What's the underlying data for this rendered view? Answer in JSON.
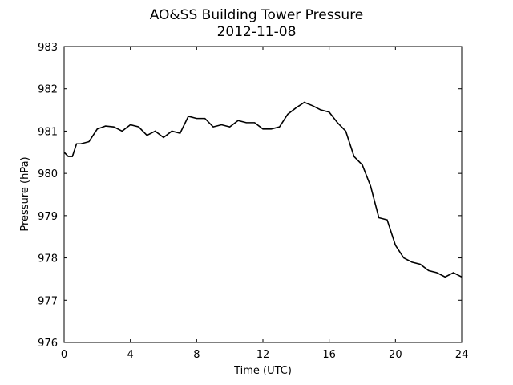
{
  "chart_data": {
    "type": "line",
    "title": "AO&SS Building Tower Pressure",
    "subtitle": "2012-11-08",
    "x_label": "Time (UTC)",
    "y_label": "Pressure (hPa)",
    "x": [
      0,
      0.25,
      0.5,
      0.75,
      1,
      1.5,
      2,
      2.5,
      3,
      3.5,
      4,
      4.5,
      5,
      5.5,
      6,
      6.5,
      7,
      7.5,
      8,
      8.5,
      9,
      9.5,
      10,
      10.5,
      11,
      11.5,
      12,
      12.5,
      13,
      13.5,
      14,
      14.5,
      15,
      15.5,
      16,
      16.5,
      17,
      17.5,
      18,
      18.5,
      19,
      19.5,
      20,
      20.5,
      21,
      21.5,
      22,
      22.5,
      23,
      23.5,
      24
    ],
    "series": [
      {
        "name": "Pressure",
        "color": "#000000",
        "values": [
          980.5,
          980.4,
          980.4,
          980.7,
          980.7,
          980.75,
          981.05,
          981.12,
          981.1,
          981.0,
          981.15,
          981.1,
          980.9,
          981.0,
          980.85,
          981.0,
          980.95,
          981.35,
          981.3,
          981.3,
          981.1,
          981.15,
          981.1,
          981.25,
          981.2,
          981.2,
          981.05,
          981.05,
          981.1,
          981.4,
          981.55,
          981.68,
          981.6,
          981.5,
          981.45,
          981.2,
          981.0,
          980.4,
          980.2,
          979.7,
          978.95,
          978.9,
          978.3,
          978.0,
          977.9,
          977.85,
          977.7,
          977.65,
          977.55,
          977.65,
          977.55
        ]
      }
    ],
    "xlim": [
      0,
      24
    ],
    "xticks": [
      0,
      4,
      8,
      12,
      16,
      20,
      24
    ],
    "ylim": [
      976,
      983
    ],
    "yticks": [
      976,
      977,
      978,
      979,
      980,
      981,
      982,
      983
    ]
  }
}
